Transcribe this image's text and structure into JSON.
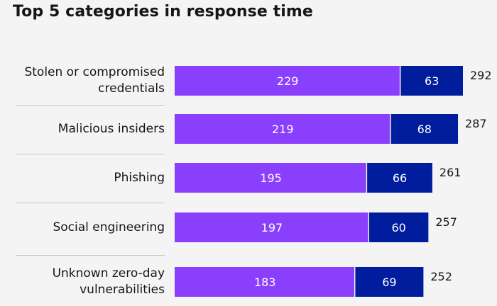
{
  "chart_data": {
    "type": "bar",
    "orientation": "horizontal",
    "stacked": true,
    "title": "Top 5 categories in response time",
    "categories": [
      "Stolen or compromised credentials",
      "Malicious insiders",
      "Phishing",
      "Social engineering",
      "Unknown zero-day vulnerabilities"
    ],
    "category_lines": [
      [
        "Stolen or compromised",
        "credentials"
      ],
      [
        "Malicious insiders"
      ],
      [
        "Phishing"
      ],
      [
        "Social engineering"
      ],
      [
        "Unknown zero-day",
        "vulnerabilities"
      ]
    ],
    "series": [
      {
        "color": "#8a3ffc",
        "values": [
          229,
          219,
          195,
          197,
          183
        ]
      },
      {
        "color": "#001d9e",
        "values": [
          63,
          68,
          66,
          60,
          69
        ]
      }
    ],
    "totals": [
      292,
      287,
      261,
      257,
      252
    ],
    "xlim": [
      0,
      292
    ],
    "grid": false,
    "legend": "none"
  }
}
